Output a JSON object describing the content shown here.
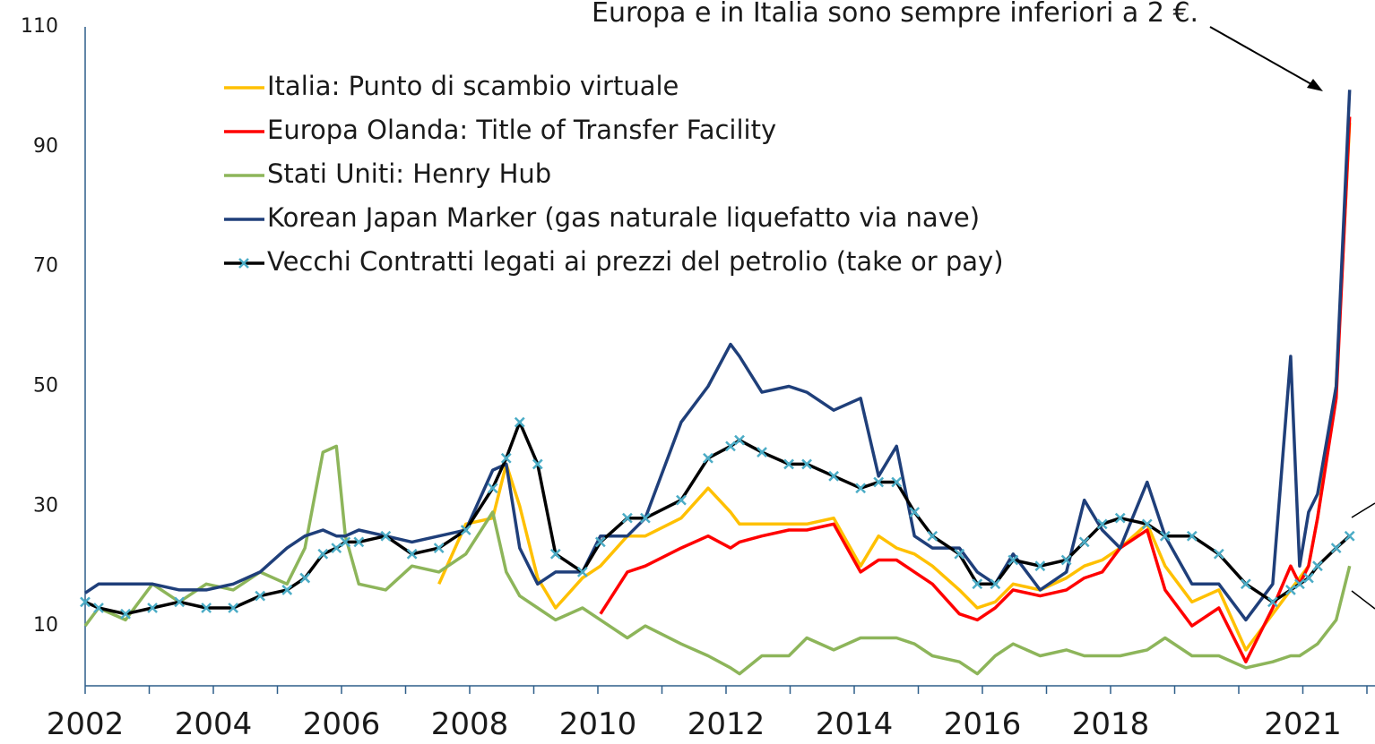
{
  "chart_data": {
    "type": "line",
    "annotation": "Europa e in Italia sono sempre inferiori a 2 €.",
    "x": [
      2002.0,
      2002.21,
      2002.63,
      2003.05,
      2003.47,
      2003.89,
      2004.31,
      2004.73,
      2005.15,
      2005.43,
      2005.71,
      2005.92,
      2006.06,
      2006.27,
      2006.69,
      2007.1,
      2007.52,
      2007.94,
      2008.36,
      2008.57,
      2008.78,
      2009.06,
      2009.34,
      2009.76,
      2010.04,
      2010.46,
      2010.74,
      2011.3,
      2011.72,
      2012.07,
      2012.21,
      2012.56,
      2012.98,
      2013.26,
      2013.68,
      2014.1,
      2014.38,
      2014.66,
      2014.94,
      2015.22,
      2015.64,
      2015.92,
      2016.2,
      2016.48,
      2016.9,
      2017.31,
      2017.59,
      2017.87,
      2018.15,
      2018.57,
      2018.85,
      2019.27,
      2019.69,
      2020.11,
      2020.53,
      2020.81,
      2020.95,
      2021.09,
      2021.23,
      2021.52,
      2021.73
    ],
    "series": [
      {
        "name": "Italia: Punto di scambio virtuale",
        "color": "#ffc000",
        "values": [
          null,
          null,
          null,
          null,
          null,
          null,
          null,
          null,
          null,
          null,
          null,
          null,
          null,
          null,
          null,
          null,
          17,
          27,
          28,
          37,
          30,
          18,
          13,
          18,
          20,
          25,
          25,
          28,
          33,
          29,
          27,
          27,
          27,
          27,
          28,
          20,
          25,
          23,
          22,
          20,
          16,
          13,
          14,
          17,
          16,
          18,
          20,
          21,
          23,
          27,
          20,
          14,
          16,
          6,
          12,
          16,
          18,
          20,
          28,
          50,
          94
        ]
      },
      {
        "name": "Europa Olanda: Title of Transfer Facility",
        "color": "#ff0000",
        "values": [
          null,
          null,
          null,
          null,
          null,
          null,
          null,
          null,
          null,
          null,
          null,
          null,
          null,
          null,
          null,
          null,
          null,
          null,
          null,
          null,
          null,
          null,
          null,
          null,
          12,
          19,
          20,
          23,
          25,
          23,
          24,
          25,
          26,
          26,
          27,
          19,
          21,
          21,
          19,
          17,
          12,
          11,
          13,
          16,
          15,
          16,
          18,
          19,
          23,
          26,
          16,
          10,
          13,
          4,
          13,
          20,
          17,
          20,
          28,
          48,
          95
        ]
      },
      {
        "name": "Stati Uniti: Henry Hub",
        "color": "#8db55a",
        "values": [
          10,
          13,
          11,
          17,
          14,
          17,
          16,
          19,
          17,
          23,
          39,
          40,
          25,
          17,
          16,
          20,
          19,
          22,
          29,
          19,
          15,
          13,
          11,
          13,
          11,
          8,
          10,
          7,
          5,
          3,
          2,
          5,
          5,
          8,
          6,
          8,
          8,
          8,
          7,
          5,
          4,
          2,
          5,
          7,
          5,
          6,
          5,
          5,
          5,
          6,
          8,
          5,
          5,
          3,
          4,
          5,
          5,
          6,
          7,
          11,
          20
        ]
      },
      {
        "name": "Korean Japan Marker (gas naturale liquefatto via nave)",
        "color": "#1f3f7a",
        "values": [
          15.5,
          17,
          17,
          17,
          16,
          16,
          17,
          19,
          23,
          25,
          26,
          25,
          25,
          26,
          25,
          24,
          25,
          26,
          36,
          37,
          23,
          17,
          19,
          19,
          25,
          25,
          28,
          44,
          50,
          57,
          55,
          49,
          50,
          49,
          46,
          48,
          35,
          40,
          25,
          23,
          23,
          19,
          17,
          22,
          16,
          19,
          31,
          26,
          23,
          34,
          25,
          17,
          17,
          11,
          17,
          55,
          20,
          29,
          32,
          50,
          99.5
        ]
      },
      {
        "name": "Vecchi Contratti legati ai prezzi del petrolio (take or pay)",
        "color": "#000000",
        "marker_color": "#4bacc6",
        "values": [
          14,
          13,
          12,
          13,
          14,
          13,
          13,
          15,
          16,
          18,
          22,
          23,
          24,
          24,
          25,
          22,
          23,
          26,
          33,
          38,
          44,
          37,
          22,
          19,
          24,
          28,
          28,
          31,
          38,
          40,
          41,
          39,
          37,
          37,
          35,
          33,
          34,
          34,
          29,
          25,
          22,
          17,
          17,
          21,
          20,
          21,
          24,
          27,
          28,
          27,
          25,
          25,
          22,
          17,
          14,
          16,
          17,
          18,
          20,
          23,
          25
        ]
      }
    ],
    "xlim": [
      2002,
      2022
    ],
    "xticks": [
      2002,
      2004,
      2006,
      2008,
      2010,
      2012,
      2014,
      2016,
      2018,
      2021
    ],
    "xticks_minor": [
      2002,
      2003,
      2004,
      2005,
      2006,
      2007,
      2008,
      2009,
      2010,
      2011,
      2012,
      2013,
      2014,
      2015,
      2016,
      2017,
      2018,
      2019,
      2020,
      2021,
      2022
    ],
    "ylim": [
      0,
      110
    ],
    "yticks": [
      10,
      30,
      50,
      70,
      90,
      110
    ],
    "grid": false,
    "legend": "upper left"
  }
}
